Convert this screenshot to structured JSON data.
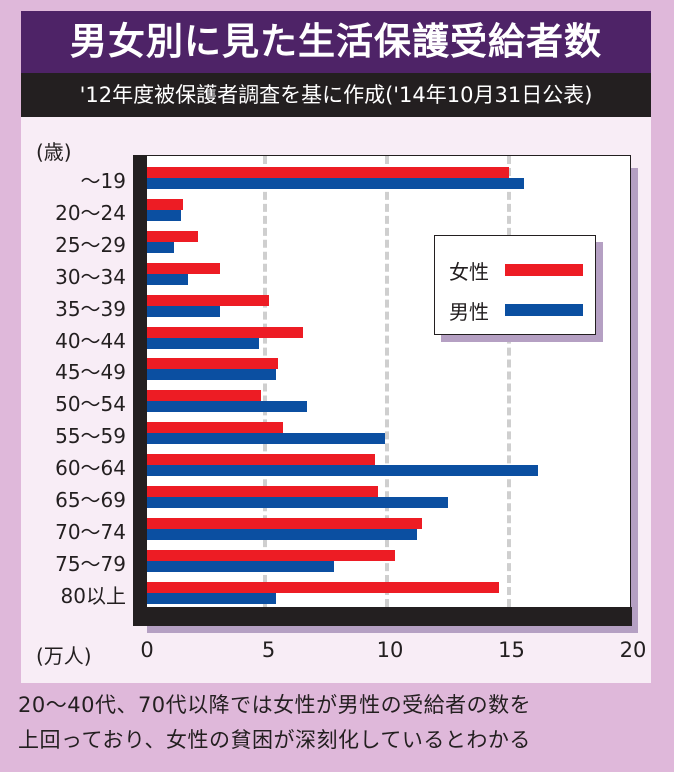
{
  "header": {
    "title": "男女別に見た生活保護受給者数",
    "subtitle": "'12年度被保護者調査を基に作成('14年10月31日公表)"
  },
  "axis": {
    "y_unit": "(歳)",
    "x_unit": "(万人)",
    "x_ticks": [
      "0",
      "5",
      "10",
      "15",
      "20"
    ]
  },
  "legend": {
    "female_label": "女性",
    "male_label": "男性",
    "female_color": "#ed1c24",
    "male_color": "#0b4fa1"
  },
  "caption": {
    "line1": "20〜40代、70代以降では女性が男性の受給者の数を",
    "line2": "上回っており、女性の貧困が深刻化しているとわかる"
  },
  "chart_data": {
    "type": "bar",
    "orientation": "horizontal",
    "title": "男女別に見た生活保護受給者数",
    "subtitle": "'12年度被保護者調査を基に作成('14年10月31日公表)",
    "xlabel": "(万人)",
    "ylabel": "(歳)",
    "xlim": [
      0,
      20
    ],
    "x_ticks": [
      0,
      5,
      10,
      15,
      20
    ],
    "grid": "vertical dashed at 5, 10, 15",
    "legend_position": "upper right inside plot",
    "categories": [
      "〜19",
      "20〜24",
      "25〜29",
      "30〜34",
      "35〜39",
      "40〜44",
      "45〜49",
      "50〜54",
      "55〜59",
      "60〜64",
      "65〜69",
      "70〜74",
      "75〜79",
      "80以上"
    ],
    "series": [
      {
        "name": "女性",
        "color": "#ed1c24",
        "values": [
          14.9,
          1.5,
          2.1,
          3.0,
          5.0,
          6.4,
          5.4,
          4.7,
          5.6,
          9.4,
          9.5,
          11.3,
          10.2,
          14.5
        ]
      },
      {
        "name": "男性",
        "color": "#0b4fa1",
        "values": [
          15.5,
          1.4,
          1.1,
          1.7,
          3.0,
          4.6,
          5.3,
          6.6,
          9.8,
          16.1,
          12.4,
          11.1,
          7.7,
          5.3
        ]
      }
    ]
  }
}
